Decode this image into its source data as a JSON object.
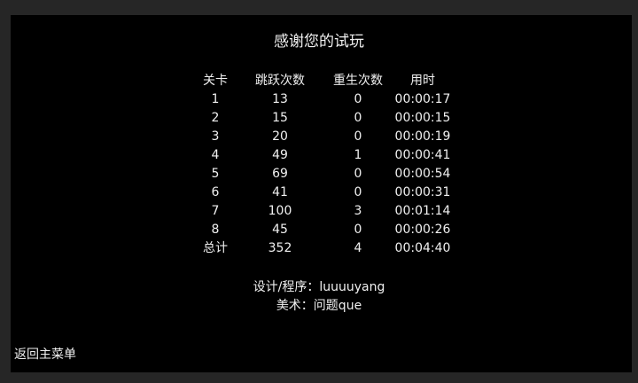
{
  "title": "感谢您的试玩",
  "table": {
    "headers": [
      "关卡",
      "跳跃次数",
      "重生次数",
      "用时"
    ],
    "rows": [
      [
        "1",
        "13",
        "0",
        "00:00:17"
      ],
      [
        "2",
        "15",
        "0",
        "00:00:15"
      ],
      [
        "3",
        "20",
        "0",
        "00:00:19"
      ],
      [
        "4",
        "49",
        "1",
        "00:00:41"
      ],
      [
        "5",
        "69",
        "0",
        "00:00:54"
      ],
      [
        "6",
        "41",
        "0",
        "00:00:31"
      ],
      [
        "7",
        "100",
        "3",
        "00:01:14"
      ],
      [
        "8",
        "45",
        "0",
        "00:00:26"
      ],
      [
        "总计",
        "352",
        "4",
        "00:04:40"
      ]
    ]
  },
  "credits": {
    "design": "设计/程序：luuuuyang",
    "art": "美术：问题que"
  },
  "back_label": "返回主菜单"
}
